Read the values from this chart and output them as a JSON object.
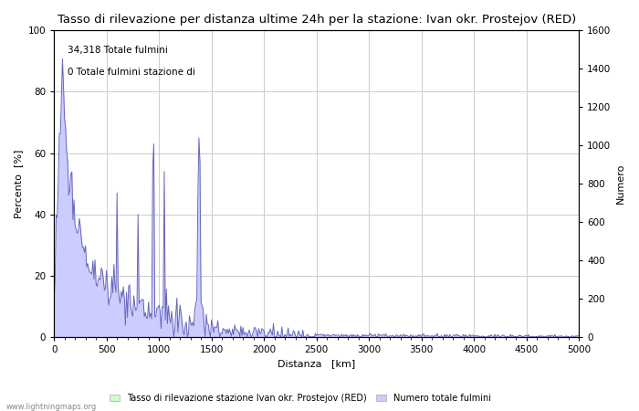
{
  "title": "Tasso di rilevazione per distanza ultime 24h per la stazione: Ivan okr. Prostejov (RED)",
  "xlabel": "Distanza   [km]",
  "ylabel_left": "Percento  [%]",
  "ylabel_right": "Numero",
  "annotation_line1": "34,318 Totale fulmini",
  "annotation_line2": "0 Totale fulmini stazione di",
  "xlim": [
    0,
    5000
  ],
  "ylim_left": [
    0,
    100
  ],
  "ylim_right": [
    0,
    1600
  ],
  "xticks": [
    0,
    500,
    1000,
    1500,
    2000,
    2500,
    3000,
    3500,
    4000,
    4500,
    5000
  ],
  "yticks_left": [
    0,
    20,
    40,
    60,
    80,
    100
  ],
  "yticks_right": [
    0,
    200,
    400,
    600,
    800,
    1000,
    1200,
    1400,
    1600
  ],
  "legend_label_green": "Tasso di rilevazione stazione Ivan okr. Prostejov (RED)",
  "legend_label_blue": "Numero totale fulmini",
  "fill_color_blue": "#ccccff",
  "fill_color_green": "#ccffcc",
  "line_color": "#6666bb",
  "watermark": "www.lightningmaps.org",
  "bg_color": "#ffffff",
  "grid_color": "#cccccc",
  "title_fontsize": 9.5,
  "axis_fontsize": 8,
  "tick_fontsize": 7.5,
  "annotation_fontsize": 7.5
}
